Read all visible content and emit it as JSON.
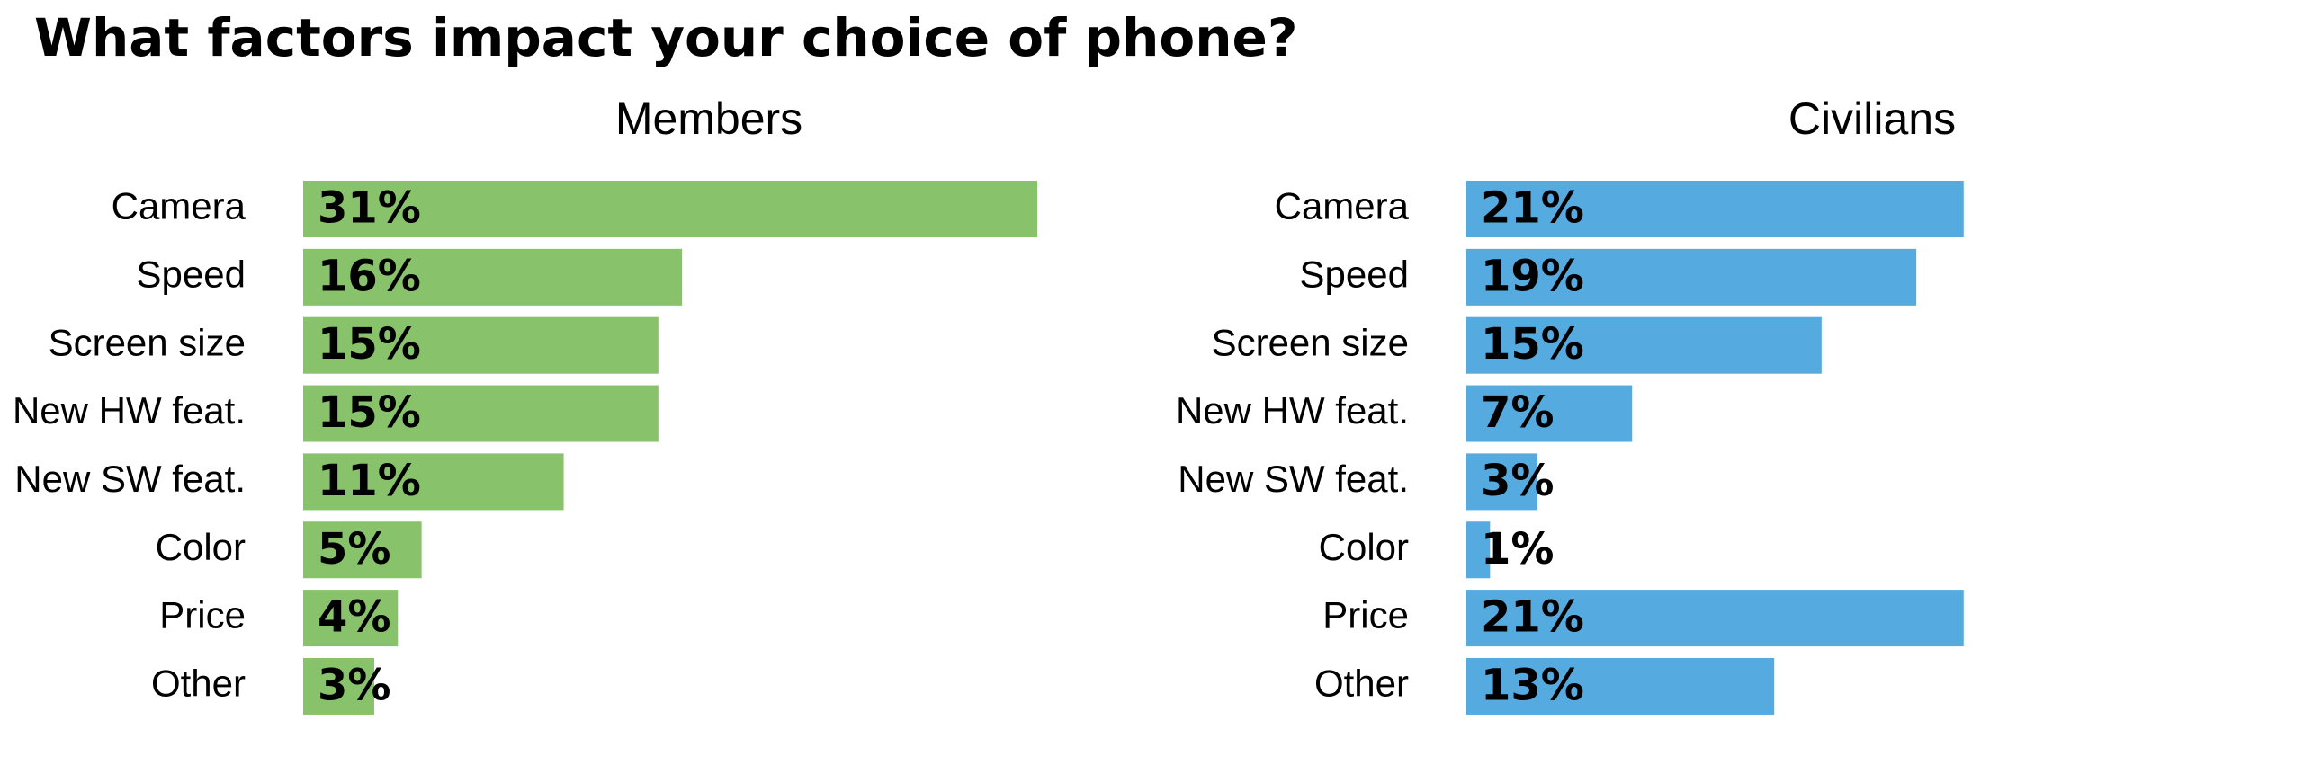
{
  "chart_data": {
    "type": "bar",
    "title": "What factors impact your choice of phone?",
    "orientation": "horizontal",
    "value_format": "percent",
    "categories": [
      "Camera",
      "Speed",
      "Screen size",
      "New HW feat.",
      "New SW feat.",
      "Color",
      "Price",
      "Other"
    ],
    "panels": [
      {
        "title": "Members",
        "color": "#88c26a",
        "values": [
          31,
          16,
          15,
          15,
          11,
          5,
          4,
          3
        ],
        "labels": [
          "31%",
          "16%",
          "15%",
          "15%",
          "11%",
          "5%",
          "4%",
          "3%"
        ]
      },
      {
        "title": "Civilians",
        "color": "#55abdf",
        "values": [
          21,
          19,
          15,
          7,
          3,
          1,
          21,
          13
        ],
        "labels": [
          "21%",
          "19%",
          "15%",
          "7%",
          "3%",
          "1%",
          "21%",
          "13%"
        ]
      }
    ],
    "xlim": [
      0,
      31
    ],
    "grid": false,
    "legend": "none"
  }
}
